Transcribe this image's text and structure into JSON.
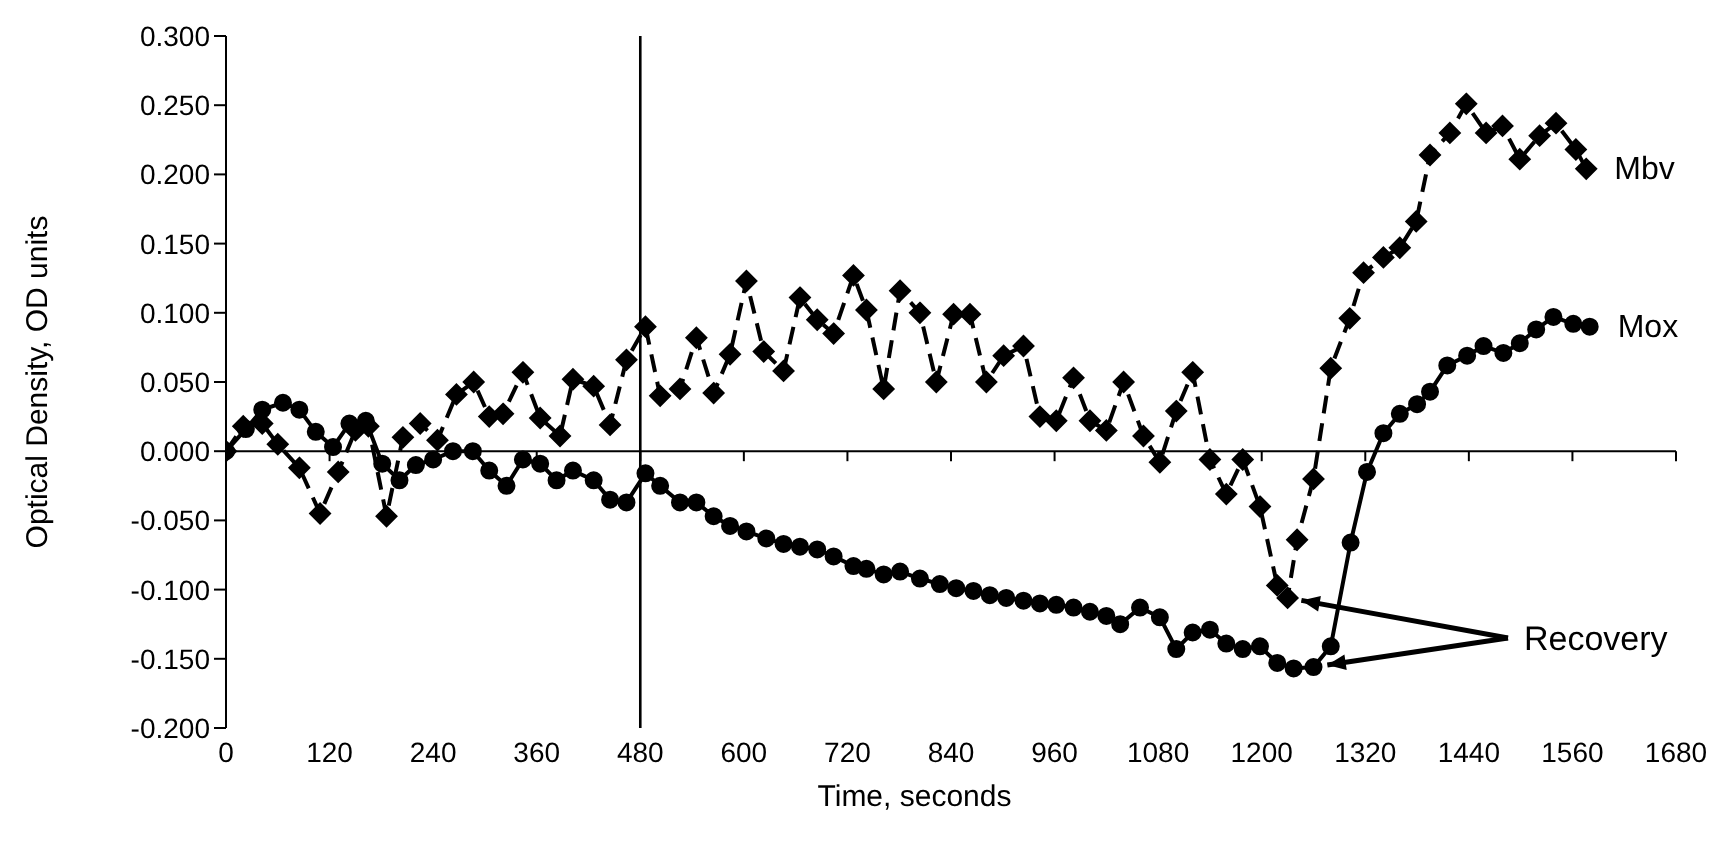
{
  "chart_data": {
    "type": "line",
    "xlabel": "Time, seconds",
    "ylabel": "Optical Density, OD units",
    "xlim": [
      0,
      1680
    ],
    "xticks": [
      0,
      120,
      240,
      360,
      480,
      600,
      720,
      840,
      960,
      1080,
      1200,
      1320,
      1440,
      1560,
      1680
    ],
    "ylim": [
      -0.2,
      0.3
    ],
    "yticks": [
      {
        "value": -0.2,
        "label": "-0.200"
      },
      {
        "value": -0.15,
        "label": "-0.150"
      },
      {
        "value": -0.1,
        "label": "-0.100"
      },
      {
        "value": -0.05,
        "label": "-0.050"
      },
      {
        "value": 0,
        "label": "0.000"
      },
      {
        "value": 0.05,
        "label": "0.050"
      },
      {
        "value": 0.1,
        "label": "0.100"
      },
      {
        "value": 0.15,
        "label": "0.150"
      },
      {
        "value": 0.2,
        "label": "0.200"
      },
      {
        "value": 0.25,
        "label": "0.250"
      },
      {
        "value": 0.3,
        "label": "0.300"
      }
    ],
    "grid": false,
    "legend": false,
    "ref_lines": [
      {
        "axis": "x",
        "value": 480,
        "color": "#000000"
      }
    ],
    "annotations": [
      {
        "text": "Recovery",
        "x": 1260,
        "y": -0.156
      }
    ],
    "series": [
      {
        "name": "Mbv",
        "color": "#000000",
        "marker": "diamond",
        "line_style": "dashed",
        "x": [
          0,
          20,
          42,
          60,
          85,
          109,
          130,
          150,
          165,
          186,
          205,
          225,
          245,
          267,
          287,
          305,
          321,
          344,
          364,
          387,
          402,
          426,
          445,
          464,
          486,
          503,
          526,
          545,
          565,
          584,
          603,
          623,
          646,
          665,
          685,
          704,
          727,
          742,
          762,
          781,
          804,
          823,
          843,
          862,
          881,
          901,
          924,
          943,
          962,
          982,
          1001,
          1020,
          1040,
          1063,
          1082,
          1101,
          1120,
          1140,
          1159,
          1178,
          1198,
          1218,
          1230,
          1241,
          1260,
          1280,
          1302,
          1318,
          1341,
          1360,
          1379,
          1395,
          1418,
          1437,
          1460,
          1479,
          1499,
          1522,
          1541,
          1564,
          1576
        ],
        "values": [
          0,
          0.018,
          0.02,
          0.005,
          -0.012,
          -0.045,
          -0.015,
          0.015,
          0.018,
          -0.047,
          0.01,
          0.02,
          0.008,
          0.041,
          0.05,
          0.025,
          0.027,
          0.057,
          0.024,
          0.011,
          0.052,
          0.047,
          0.019,
          0.066,
          0.09,
          0.04,
          0.045,
          0.082,
          0.042,
          0.07,
          0.123,
          0.072,
          0.058,
          0.111,
          0.095,
          0.085,
          0.127,
          0.102,
          0.045,
          0.116,
          0.1,
          0.05,
          0.099,
          0.099,
          0.05,
          0.069,
          0.076,
          0.025,
          0.022,
          0.053,
          0.022,
          0.015,
          0.05,
          0.011,
          -0.008,
          0.029,
          0.057,
          -0.006,
          -0.031,
          -0.006,
          -0.04,
          -0.097,
          -0.106,
          -0.064,
          -0.02,
          0.06,
          0.096,
          0.129,
          0.14,
          0.147,
          0.166,
          0.214,
          0.23,
          0.251,
          0.23,
          0.235,
          0.211,
          0.228,
          0.237,
          0.218,
          0.204
        ]
      },
      {
        "name": "Mox",
        "color": "#000000",
        "marker": "circle",
        "line_style": "solid",
        "x": [
          0,
          23,
          42,
          66,
          85,
          104,
          124,
          143,
          162,
          181,
          201,
          220,
          240,
          263,
          286,
          305,
          325,
          344,
          364,
          383,
          402,
          426,
          445,
          464,
          486,
          503,
          526,
          545,
          565,
          584,
          603,
          626,
          646,
          665,
          685,
          704,
          727,
          742,
          762,
          781,
          804,
          827,
          846,
          866,
          885,
          904,
          924,
          943,
          962,
          982,
          1001,
          1020,
          1036,
          1059,
          1082,
          1101,
          1120,
          1140,
          1159,
          1178,
          1198,
          1218,
          1237,
          1260,
          1280,
          1303,
          1322,
          1341,
          1360,
          1380,
          1395,
          1415,
          1438,
          1457,
          1480,
          1499,
          1518,
          1538,
          1561,
          1580
        ],
        "values": [
          0,
          0.016,
          0.03,
          0.035,
          0.03,
          0.014,
          0.003,
          0.02,
          0.022,
          -0.009,
          -0.021,
          -0.01,
          -0.006,
          0,
          0,
          -0.014,
          -0.025,
          -0.006,
          -0.009,
          -0.021,
          -0.014,
          -0.021,
          -0.035,
          -0.037,
          -0.016,
          -0.025,
          -0.037,
          -0.037,
          -0.047,
          -0.054,
          -0.058,
          -0.063,
          -0.067,
          -0.069,
          -0.071,
          -0.076,
          -0.083,
          -0.085,
          -0.089,
          -0.087,
          -0.092,
          -0.096,
          -0.099,
          -0.101,
          -0.104,
          -0.106,
          -0.108,
          -0.11,
          -0.111,
          -0.113,
          -0.116,
          -0.119,
          -0.125,
          -0.113,
          -0.12,
          -0.143,
          -0.131,
          -0.129,
          -0.139,
          -0.143,
          -0.141,
          -0.153,
          -0.157,
          -0.156,
          -0.141,
          -0.066,
          -0.015,
          0.013,
          0.027,
          0.034,
          0.043,
          0.062,
          0.069,
          0.076,
          0.071,
          0.078,
          0.088,
          0.097,
          0.092,
          0.09
        ]
      }
    ]
  }
}
